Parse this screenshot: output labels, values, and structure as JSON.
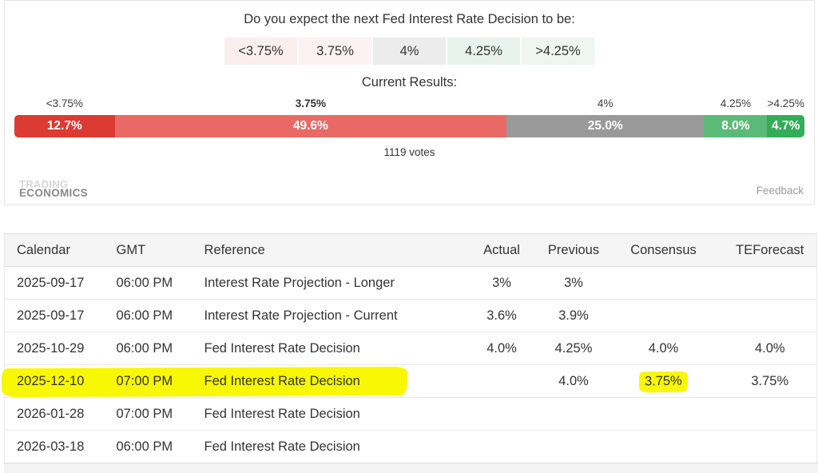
{
  "poll": {
    "question": "Do you expect the next Fed Interest Rate Decision to be:",
    "options": [
      {
        "label": "<3.75%",
        "bg": "#fbefee"
      },
      {
        "label": "3.75%",
        "bg": "#fcf2f1"
      },
      {
        "label": "4%",
        "bg": "#ececec"
      },
      {
        "label": "4.25%",
        "bg": "#e9f3ed"
      },
      {
        "label": ">4.25%",
        "bg": "#edf6f0"
      }
    ],
    "results_title": "Current Results:",
    "segments": [
      {
        "label": "<3.75%",
        "value": 12.7,
        "display": "12.7%",
        "color": "#db3b32",
        "bold": false
      },
      {
        "label": "3.75%",
        "value": 49.6,
        "display": "49.6%",
        "color": "#e96a64",
        "bold": true
      },
      {
        "label": "4%",
        "value": 25.0,
        "display": "25.0%",
        "color": "#999999",
        "bold": false
      },
      {
        "label": "4.25%",
        "value": 8.0,
        "display": "8.0%",
        "color": "#5cba79",
        "bold": false
      },
      {
        "label": ">4.25%",
        "value": 4.7,
        "display": "4.7%",
        "color": "#33ad58",
        "bold": false
      }
    ],
    "votes": "1119 votes",
    "brand_line1": "TRADING",
    "brand_line2": "ECONOMICS",
    "feedback": "Feedback"
  },
  "table": {
    "highlight_color": "#f8f704",
    "columns": [
      "Calendar",
      "GMT",
      "Reference",
      "Actual",
      "Previous",
      "Consensus",
      "TEForecast"
    ],
    "rows": [
      {
        "calendar": "2025-09-17",
        "gmt": "06:00 PM",
        "reference": "Interest Rate Projection - Longer",
        "actual": "3%",
        "previous": "3%",
        "consensus": "",
        "teforecast": ""
      },
      {
        "calendar": "2025-09-17",
        "gmt": "06:00 PM",
        "reference": "Interest Rate Projection - Current",
        "actual": "3.6%",
        "previous": "3.9%",
        "consensus": "",
        "teforecast": ""
      },
      {
        "calendar": "2025-10-29",
        "gmt": "06:00 PM",
        "reference": "Fed Interest Rate Decision",
        "actual": "4.0%",
        "previous": "4.25%",
        "consensus": "4.0%",
        "teforecast": "4.0%"
      },
      {
        "calendar": "2025-12-10",
        "gmt": "07:00 PM",
        "reference": "Fed Interest Rate Decision",
        "actual": "",
        "previous": "4.0%",
        "consensus": "3.75%",
        "teforecast": "3.75%"
      },
      {
        "calendar": "2026-01-28",
        "gmt": "07:00 PM",
        "reference": "Fed Interest Rate Decision",
        "actual": "",
        "previous": "",
        "consensus": "",
        "teforecast": ""
      },
      {
        "calendar": "2026-03-18",
        "gmt": "06:00 PM",
        "reference": "Fed Interest Rate Decision",
        "actual": "",
        "previous": "",
        "consensus": "",
        "teforecast": ""
      }
    ]
  },
  "chart_data": {
    "type": "bar",
    "title": "Current Results:",
    "subtitle": "Do you expect the next Fed Interest Rate Decision to be:",
    "categories": [
      "<3.75%",
      "3.75%",
      "4%",
      "4.25%",
      ">4.25%"
    ],
    "values": [
      12.7,
      49.6,
      25.0,
      8.0,
      4.7
    ],
    "unit": "%",
    "annotations": [
      "1119 votes"
    ],
    "layout": "horizontal-stacked",
    "colors": [
      "#db3b32",
      "#e96a64",
      "#999999",
      "#5cba79",
      "#33ad58"
    ]
  }
}
